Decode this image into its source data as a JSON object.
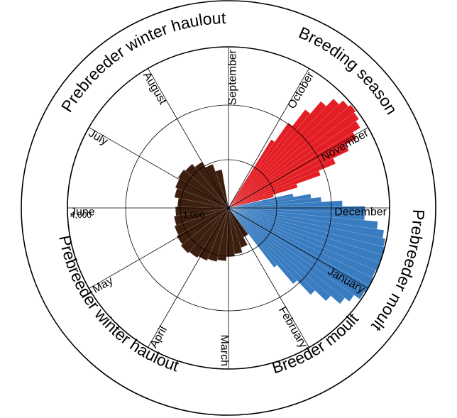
{
  "chart_data": {
    "type": "polar-histogram",
    "title": "",
    "radial_ticks": [
      {
        "value": 1000,
        "label": "1,000"
      },
      {
        "value": 4000,
        "label": "4,000"
      }
    ],
    "months": [
      {
        "name": "September"
      },
      {
        "name": "October"
      },
      {
        "name": "November"
      },
      {
        "name": "December"
      },
      {
        "name": "January"
      },
      {
        "name": "February"
      },
      {
        "name": "March"
      },
      {
        "name": "April"
      },
      {
        "name": "May"
      },
      {
        "name": "June"
      },
      {
        "name": "July"
      },
      {
        "name": "August"
      }
    ],
    "seasons": [
      {
        "name": "Breeding season"
      },
      {
        "name": "Prebreeder moult"
      },
      {
        "name": "Breeder moult"
      },
      {
        "name": "Prebreeder winter haulout"
      },
      {
        "name": "Prebreeder winter haulout"
      }
    ],
    "series": [
      {
        "color": "#e31e24",
        "bins": [
          {
            "day": 34,
            "value": 1500
          },
          {
            "day": 37,
            "value": 2500
          },
          {
            "day": 40,
            "value": 3600
          },
          {
            "day": 43,
            "value": 4600
          },
          {
            "day": 46,
            "value": 5300
          },
          {
            "day": 49,
            "value": 5700
          },
          {
            "day": 52,
            "value": 5900
          },
          {
            "day": 55,
            "value": 5750
          },
          {
            "day": 58,
            "value": 5500
          },
          {
            "day": 61,
            "value": 4900
          },
          {
            "day": 64,
            "value": 4100
          },
          {
            "day": 67,
            "value": 3100
          },
          {
            "day": 70,
            "value": 2200
          },
          {
            "day": 73,
            "value": 1200
          },
          {
            "day": 76,
            "value": 500
          }
        ]
      },
      {
        "color": "#3a7cc0",
        "bins": [
          {
            "day": 80,
            "value": 1000
          },
          {
            "day": 83,
            "value": 1600
          },
          {
            "day": 86,
            "value": 2000
          },
          {
            "day": 89,
            "value": 3000
          },
          {
            "day": 92,
            "value": 4300
          },
          {
            "day": 95,
            "value": 4300
          },
          {
            "day": 98,
            "value": 5200
          },
          {
            "day": 101,
            "value": 5700
          },
          {
            "day": 104,
            "value": 5900
          },
          {
            "day": 107,
            "value": 6000
          },
          {
            "day": 110,
            "value": 6000
          },
          {
            "day": 113,
            "value": 6000
          },
          {
            "day": 116,
            "value": 5900
          },
          {
            "day": 119,
            "value": 6000
          },
          {
            "day": 122,
            "value": 6000
          },
          {
            "day": 125,
            "value": 5900
          },
          {
            "day": 128,
            "value": 5400
          },
          {
            "day": 131,
            "value": 5000
          },
          {
            "day": 134,
            "value": 4200
          },
          {
            "day": 137,
            "value": 3300
          },
          {
            "day": 140,
            "value": 2300
          },
          {
            "day": 143,
            "value": 1300
          }
        ]
      },
      {
        "color": "#3d1f10",
        "bins": [
          {
            "day": 150,
            "value": 250
          },
          {
            "day": 160,
            "value": 400
          },
          {
            "day": 170,
            "value": 500
          },
          {
            "day": 180,
            "value": 550
          },
          {
            "day": 190,
            "value": 650
          },
          {
            "day": 200,
            "value": 700
          },
          {
            "day": 210,
            "value": 750
          },
          {
            "day": 220,
            "value": 800
          },
          {
            "day": 230,
            "value": 850
          },
          {
            "day": 240,
            "value": 800
          },
          {
            "day": 250,
            "value": 750
          },
          {
            "day": 260,
            "value": 700
          },
          {
            "day": 270,
            "value": 650
          },
          {
            "day": 280,
            "value": 600
          },
          {
            "day": 290,
            "value": 700
          },
          {
            "day": 300,
            "value": 750
          },
          {
            "day": 310,
            "value": 800
          },
          {
            "day": 320,
            "value": 750
          },
          {
            "day": 330,
            "value": 650
          },
          {
            "day": 340,
            "value": 500
          },
          {
            "day": 350,
            "value": 350
          }
        ]
      }
    ]
  }
}
